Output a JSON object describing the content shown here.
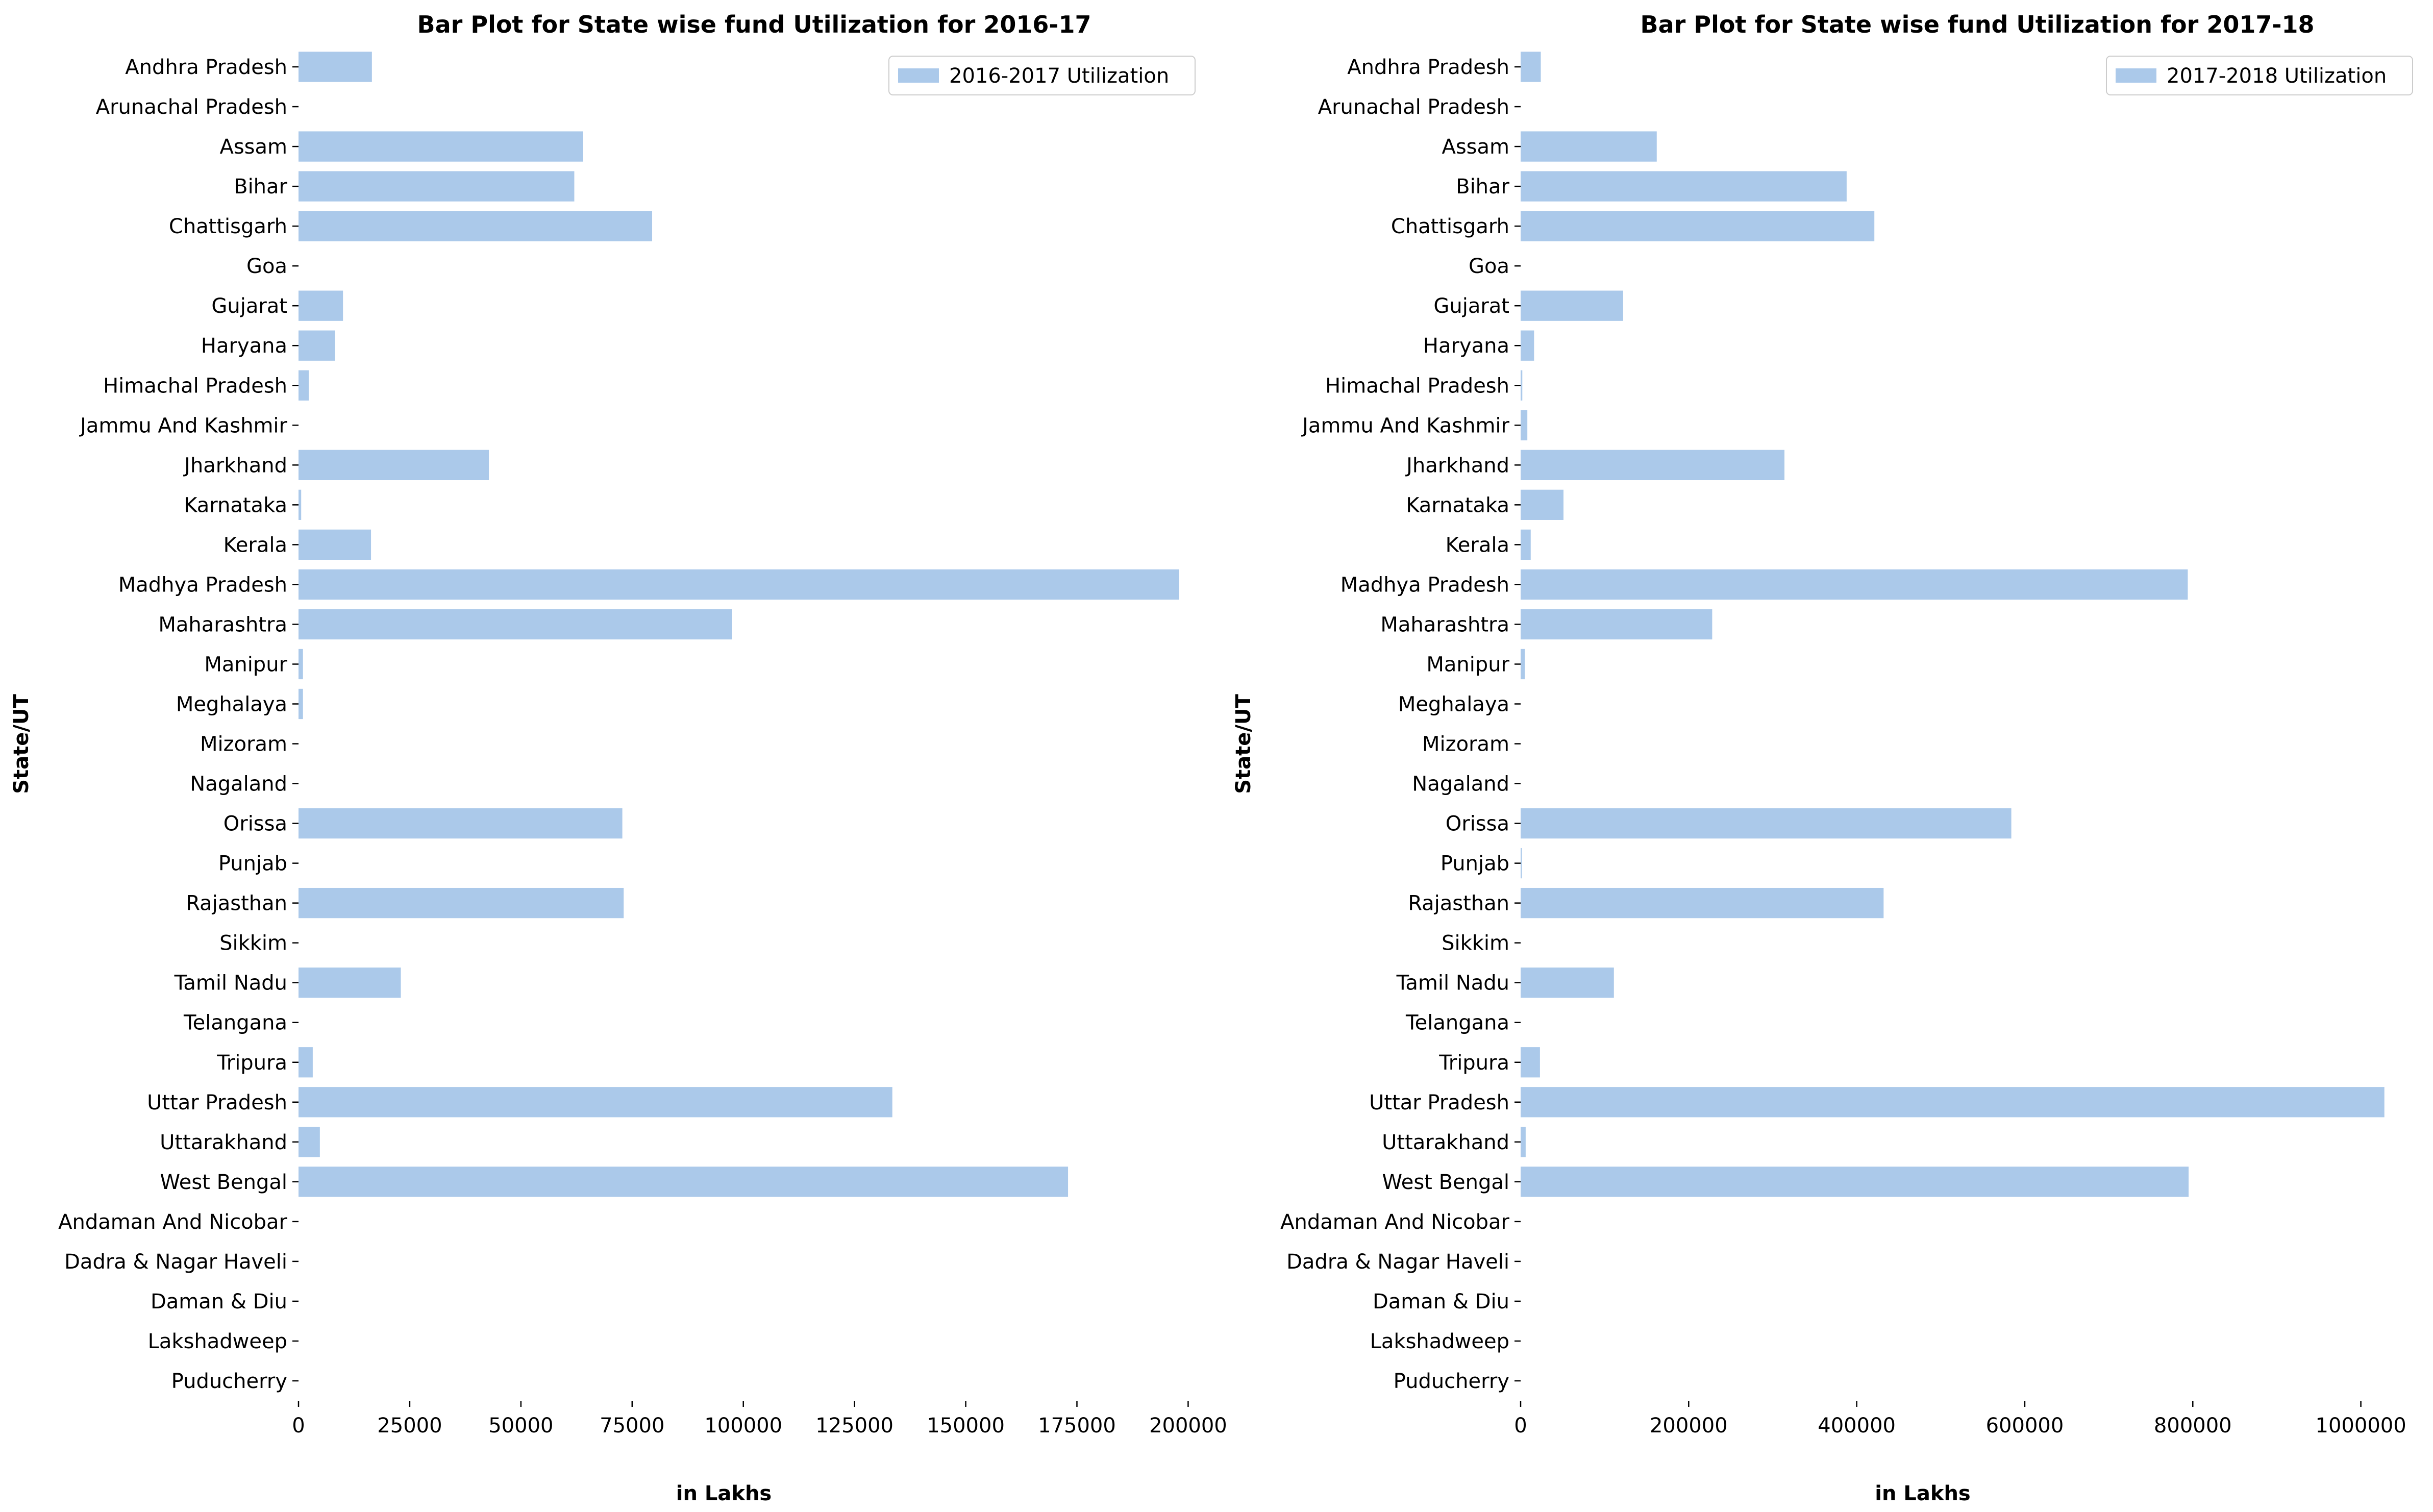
{
  "chart_data": [
    {
      "type": "bar",
      "orientation": "horizontal",
      "title": "Bar Plot for State wise fund Utilization for 2016-17",
      "xlabel": "in Lakhs",
      "ylabel": "State/UT",
      "legend": "2016-2017 Utilization",
      "legend_position": "top-right",
      "xlim": [
        0,
        205000
      ],
      "xticks": [
        0,
        25000,
        50000,
        75000,
        100000,
        125000,
        150000,
        175000,
        200000
      ],
      "bar_color": "#abc9ea",
      "categories": [
        "Andhra Pradesh",
        "Arunachal Pradesh",
        "Assam",
        "Bihar",
        "Chattisgarh",
        "Goa",
        "Gujarat",
        "Haryana",
        "Himachal Pradesh",
        "Jammu And Kashmir",
        "Jharkhand",
        "Karnataka",
        "Kerala",
        "Madhya Pradesh",
        "Maharashtra",
        "Manipur",
        "Meghalaya",
        "Mizoram",
        "Nagaland",
        "Orissa",
        "Punjab",
        "Rajasthan",
        "Sikkim",
        "Tamil Nadu",
        "Telangana",
        "Tripura",
        "Uttar Pradesh",
        "Uttarakhand",
        "West Bengal",
        "Andaman And Nicobar",
        "Dadra & Nagar Haveli",
        "Daman & Diu",
        "Lakshadweep",
        "Puducherry"
      ],
      "values": [
        16500,
        0,
        64000,
        62000,
        79500,
        0,
        10000,
        8200,
        2300,
        0,
        42800,
        600,
        16300,
        198000,
        97500,
        1000,
        1000,
        0,
        0,
        72800,
        0,
        73100,
        0,
        23000,
        0,
        3200,
        133500,
        4800,
        173000,
        0,
        0,
        0,
        0,
        0
      ]
    },
    {
      "type": "bar",
      "orientation": "horizontal",
      "title": "Bar Plot for State wise fund Utilization for 2017-18",
      "xlabel": "in Lakhs",
      "ylabel": "State/UT",
      "legend": "2017-2018 Utilization",
      "legend_position": "top-right",
      "xlim": [
        0,
        1030000
      ],
      "xticks": [
        0,
        200000,
        400000,
        600000,
        800000,
        1000000
      ],
      "bar_color": "#abc9ea",
      "categories": [
        "Andhra Pradesh",
        "Arunachal Pradesh",
        "Assam",
        "Bihar",
        "Chattisgarh",
        "Goa",
        "Gujarat",
        "Haryana",
        "Himachal Pradesh",
        "Jammu And Kashmir",
        "Jharkhand",
        "Karnataka",
        "Kerala",
        "Madhya Pradesh",
        "Maharashtra",
        "Manipur",
        "Meghalaya",
        "Mizoram",
        "Nagaland",
        "Orissa",
        "Punjab",
        "Rajasthan",
        "Sikkim",
        "Tamil Nadu",
        "Telangana",
        "Tripura",
        "Uttar Pradesh",
        "Uttarakhand",
        "West Bengal",
        "Andaman And Nicobar",
        "Dadra & Nagar Haveli",
        "Daman & Diu",
        "Lakshadweep",
        "Puducherry"
      ],
      "values": [
        24000,
        0,
        162000,
        388000,
        421000,
        0,
        122000,
        16000,
        2000,
        8000,
        314000,
        51000,
        12000,
        794000,
        228000,
        5000,
        0,
        0,
        0,
        584000,
        1500,
        432000,
        0,
        111000,
        0,
        23000,
        1028000,
        6000,
        795000,
        0,
        0,
        0,
        0,
        0
      ]
    }
  ]
}
